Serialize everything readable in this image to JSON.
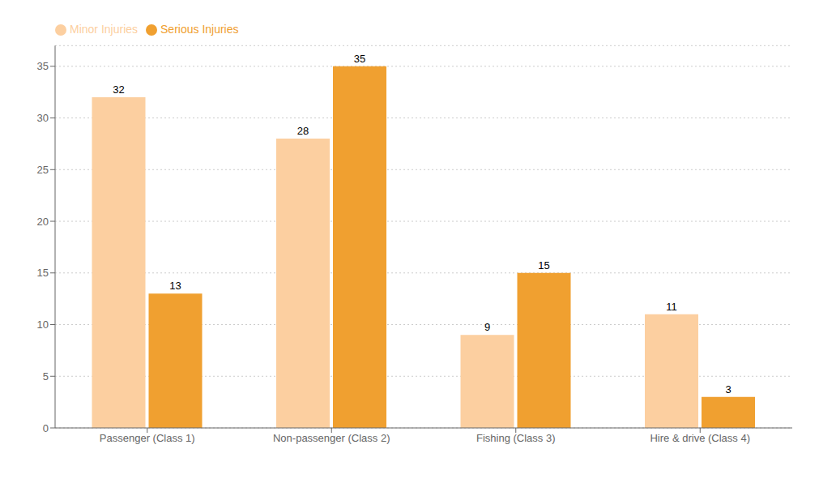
{
  "chart_data": {
    "type": "bar",
    "categories": [
      "Passenger (Class 1)",
      "Non-passenger (Class 2)",
      "Fishing (Class 3)",
      "Hire & drive (Class 4)"
    ],
    "series": [
      {
        "name": "Minor Injuries",
        "color": "#FCCFA0",
        "values": [
          32,
          28,
          9,
          11
        ]
      },
      {
        "name": "Serious Injuries",
        "color": "#F0A030",
        "values": [
          13,
          35,
          15,
          3
        ]
      }
    ],
    "ylim": [
      0,
      37
    ],
    "yticks": [
      0,
      5,
      10,
      15,
      20,
      25,
      30,
      35
    ],
    "grid": true,
    "legend": "upper left",
    "data_labels": true
  }
}
